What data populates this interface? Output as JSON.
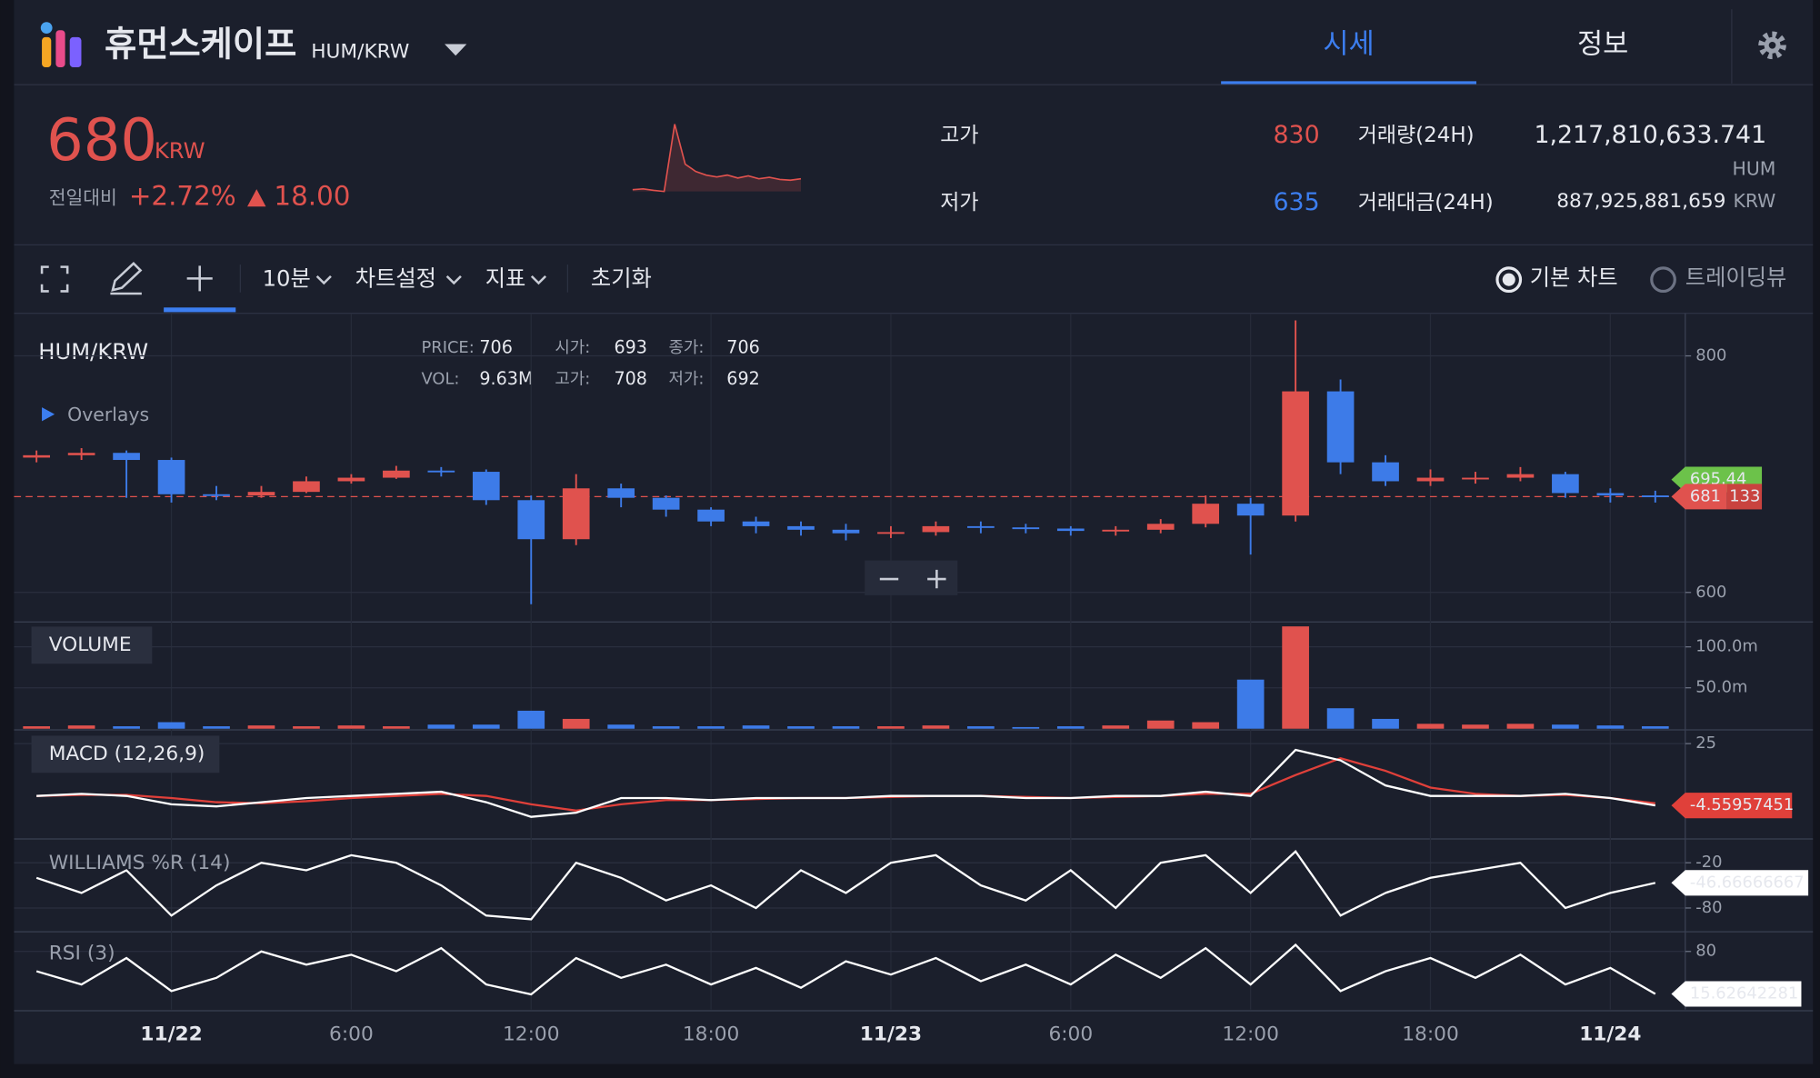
{
  "header": {
    "title": "휴먼스케이프",
    "pair": "HUM/KRW",
    "tabs": [
      "시세",
      "정보"
    ]
  },
  "summary": {
    "price": "680",
    "currency": "KRW",
    "change_label": "전일대비",
    "change_pct": "+2.72%",
    "change_abs": "18.00",
    "high_label": "고가",
    "high": "830",
    "low_label": "저가",
    "low": "635",
    "volume_label": "거래량(24H)",
    "volume": "1,217,810,633.741",
    "volume_unit": "HUM",
    "value_label": "거래대금(24H)",
    "value": "887,925,881,659",
    "value_unit": "KRW",
    "sparkline": [
      650,
      652,
      648,
      645,
      830,
      720,
      700,
      690,
      685,
      690,
      682,
      688,
      680,
      684,
      678,
      676,
      680
    ]
  },
  "toolbar": {
    "interval": "10분",
    "settings": "차트설정",
    "indicators": "지표",
    "reset": "초기화",
    "modes": [
      "기본 차트",
      "트레이딩뷰"
    ]
  },
  "chart_data": {
    "type": "candlestick",
    "title": "HUM/KRW",
    "overlays": "Overlays",
    "legend": {
      "price_label": "PRICE:",
      "price": "706",
      "vol_label": "VOL:",
      "vol": "9.63M",
      "open_label": "시가:",
      "open": "693",
      "high_label": "고가:",
      "high": "708",
      "close_label": "종가:",
      "close": "706",
      "low_label": "저가:",
      "low": "692"
    },
    "up_color": "#e0524e",
    "down_color": "#3d7be8",
    "x": [
      19.5,
      21,
      22.5,
      24,
      25.5,
      27,
      28.5,
      30,
      31.5,
      33,
      34.5,
      36,
      37.5,
      39,
      40.5,
      42,
      43.5,
      45,
      46.5,
      48,
      49.5,
      51,
      52.5,
      54,
      55.5,
      57,
      58.5,
      60,
      61.5,
      63,
      64.5,
      66,
      67.5,
      69,
      70.5,
      72,
      73.5
    ],
    "xlim": [
      18.75,
      74.5
    ],
    "xticks": [
      {
        "value": 24,
        "label": "11/22"
      },
      {
        "value": 30,
        "label": "6:00"
      },
      {
        "value": 36,
        "label": "12:00"
      },
      {
        "value": 42,
        "label": "18:00"
      },
      {
        "value": 48,
        "label": "11/23"
      },
      {
        "value": 54,
        "label": "6:00"
      },
      {
        "value": 60,
        "label": "12:00"
      },
      {
        "value": 66,
        "label": "18:00"
      },
      {
        "value": 72,
        "label": "11/24"
      }
    ],
    "open": [
      714,
      716,
      718,
      712,
      683,
      682,
      685,
      694,
      697,
      703,
      702,
      678,
      645,
      688,
      680,
      670,
      660,
      656,
      653,
      650,
      651,
      656,
      655,
      654,
      652,
      653,
      658,
      675,
      665,
      770,
      710,
      694,
      697,
      697,
      700,
      684,
      682
    ],
    "high": [
      720,
      722,
      720,
      714,
      690,
      690,
      698,
      700,
      707,
      706,
      704,
      682,
      700,
      692,
      682,
      672,
      664,
      660,
      658,
      656,
      660,
      660,
      658,
      656,
      656,
      662,
      682,
      680,
      830,
      780,
      716,
      704,
      702,
      706,
      702,
      688,
      686
    ],
    "low": [
      710,
      712,
      680,
      676,
      678,
      680,
      684,
      692,
      696,
      698,
      674,
      590,
      640,
      672,
      664,
      656,
      650,
      648,
      644,
      646,
      648,
      650,
      650,
      648,
      648,
      650,
      655,
      632,
      660,
      700,
      690,
      690,
      692,
      694,
      680,
      676,
      676
    ],
    "close": [
      716,
      718,
      712,
      683,
      682,
      685,
      694,
      697,
      703,
      702,
      678,
      645,
      688,
      680,
      670,
      660,
      656,
      653,
      650,
      651,
      656,
      655,
      654,
      652,
      653,
      658,
      675,
      665,
      770,
      710,
      694,
      697,
      697,
      700,
      684,
      682,
      681
    ],
    "ylim": [
      576,
      836
    ],
    "yticks": [
      600,
      800
    ],
    "ma_last": 695.44,
    "ma_color": "#6cc24a",
    "timer": "133",
    "volume": {
      "title": "VOLUME",
      "values": [
        3,
        4,
        3,
        8,
        3,
        4,
        3,
        4,
        3,
        5,
        5,
        22,
        12,
        5,
        3,
        3,
        4,
        3,
        3,
        3,
        4,
        3,
        2,
        3,
        4,
        10,
        8,
        60,
        125,
        25,
        12,
        6,
        5,
        6,
        5,
        4,
        3
      ],
      "ylim": [
        0,
        129
      ],
      "yticks": [
        {
          "value": 50,
          "label": "50.0m"
        },
        {
          "value": 100,
          "label": "100.0m"
        }
      ]
    },
    "macd": {
      "title": "MACD (12,26,9)",
      "macd_color": "#ffffff",
      "signal_color": "#e0403a",
      "macd": [
        0,
        1,
        0,
        -4,
        -5,
        -3,
        -1,
        0,
        1,
        2,
        -3,
        -10,
        -8,
        -1,
        -1,
        -2,
        -1,
        -1,
        -1,
        0,
        0,
        0,
        -1,
        -1,
        0,
        0,
        2,
        0,
        22,
        17,
        5,
        0,
        0,
        0,
        1,
        -1,
        -4.55957451
      ],
      "signal": [
        0,
        0.5,
        0.5,
        -1,
        -3,
        -3.5,
        -2.5,
        -1,
        0,
        1,
        0,
        -4,
        -7,
        -4,
        -2,
        -2,
        -1.5,
        -1,
        -1,
        -0.5,
        0,
        0,
        -0.5,
        -1,
        -0.5,
        0,
        1,
        1,
        10,
        18,
        12,
        4,
        1,
        0,
        0.5,
        -1,
        -3.5
      ],
      "ylim": [
        -20,
        31
      ],
      "yticks": [
        25
      ]
    },
    "williams": {
      "title": "WILLIAMS %R (14)",
      "values": [
        -40,
        -60,
        -30,
        -90,
        -50,
        -20,
        -30,
        -10,
        -20,
        -50,
        -90,
        -95,
        -20,
        -40,
        -70,
        -50,
        -80,
        -30,
        -60,
        -20,
        -10,
        -50,
        -70,
        -30,
        -80,
        -20,
        -10,
        -60,
        -5,
        -90,
        -60,
        -40,
        -30,
        -20,
        -80,
        -60,
        -46.66666667
      ],
      "ylim": [
        -110,
        10
      ],
      "yticks": [
        -20,
        -80
      ]
    },
    "rsi": {
      "title": "RSI (3)",
      "values": [
        50,
        30,
        70,
        20,
        40,
        80,
        60,
        75,
        50,
        85,
        30,
        15,
        70,
        40,
        60,
        30,
        55,
        25,
        65,
        45,
        70,
        35,
        60,
        30,
        75,
        40,
        85,
        30,
        90,
        20,
        50,
        70,
        40,
        75,
        30,
        55,
        15.62642281
      ],
      "ylim": [
        -8,
        108
      ],
      "yticks": [
        80
      ]
    }
  }
}
